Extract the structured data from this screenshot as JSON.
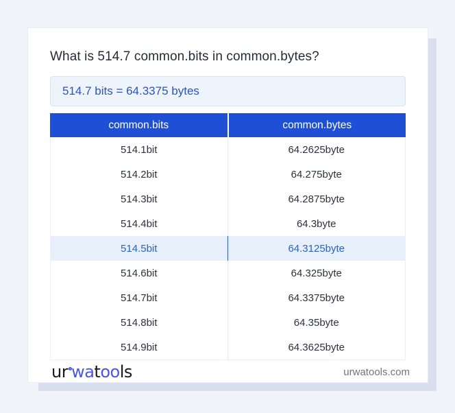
{
  "page": {
    "title": "What is 514.7 common.bits in common.bytes?",
    "result": "514.7 bits = 64.3375 bytes"
  },
  "table": {
    "headers": [
      "common.bits",
      "common.bytes"
    ],
    "rows": [
      {
        "bits": "514.1bit",
        "bytes": "64.2625byte",
        "highlighted": false
      },
      {
        "bits": "514.2bit",
        "bytes": "64.275byte",
        "highlighted": false
      },
      {
        "bits": "514.3bit",
        "bytes": "64.2875byte",
        "highlighted": false
      },
      {
        "bits": "514.4bit",
        "bytes": "64.3byte",
        "highlighted": false
      },
      {
        "bits": "514.5bit",
        "bytes": "64.3125byte",
        "highlighted": true
      },
      {
        "bits": "514.6bit",
        "bytes": "64.325byte",
        "highlighted": false
      },
      {
        "bits": "514.7bit",
        "bytes": "64.3375byte",
        "highlighted": false
      },
      {
        "bits": "514.8bit",
        "bytes": "64.35byte",
        "highlighted": false
      },
      {
        "bits": "514.9bit",
        "bytes": "64.3625byte",
        "highlighted": false
      }
    ]
  },
  "footer": {
    "logo": {
      "part1": "ur",
      "part2": "wa",
      "part3": "t",
      "part4": "oo",
      "part5": "ls"
    },
    "domain": "urwatools.com"
  },
  "colors": {
    "page_background": "#f3f4f9",
    "card_shadow": "#d9dfef",
    "header_blue": "#1e4fd4",
    "result_box_bg": "#edf4fc",
    "result_text_blue": "#2b54c2",
    "highlight_row_bg": "#e7f0fa",
    "highlight_text_blue": "#2b62c4",
    "logo_blue": "#4656e8"
  }
}
